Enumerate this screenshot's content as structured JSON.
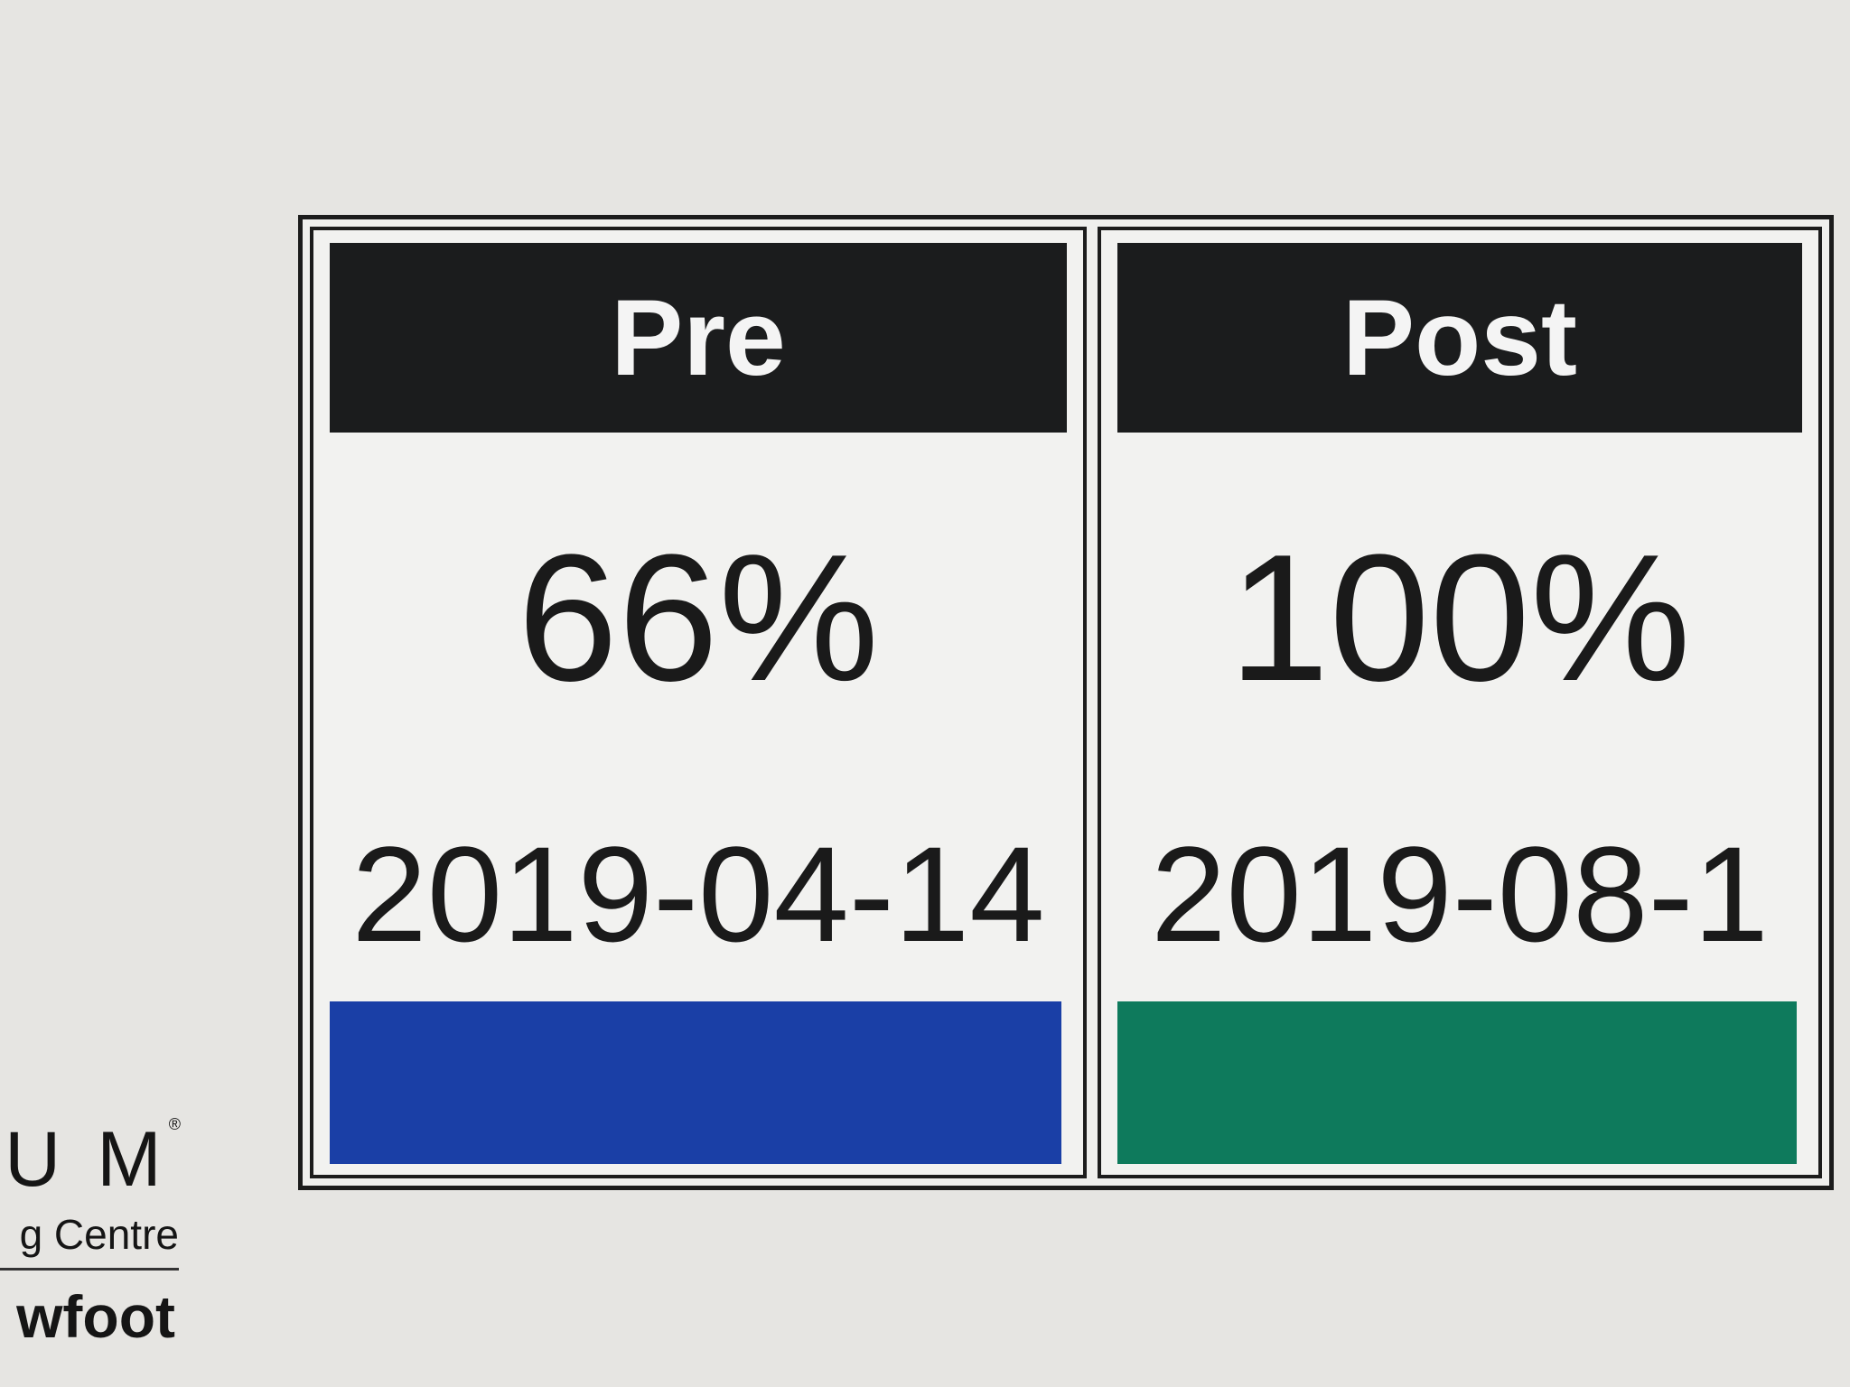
{
  "cards": [
    {
      "label": "Pre",
      "value": "66%",
      "date": "2019-04-14",
      "color": "#1a3fa6"
    },
    {
      "label": "Post",
      "value": "100%",
      "date": "2019-08-1",
      "color": "#0e7a5c"
    }
  ],
  "logo": {
    "line1": "U M",
    "registered": "®",
    "line2": "g Centre",
    "line3": "wfoot"
  }
}
